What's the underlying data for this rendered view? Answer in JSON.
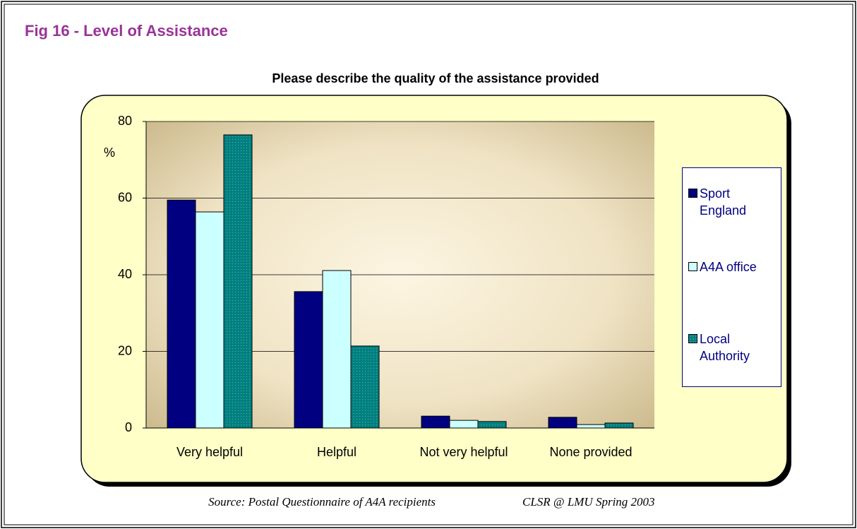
{
  "heading": "Fig 16 - Level of Assistance",
  "chart_data": {
    "type": "bar",
    "title": "Please describe the quality of the assistance provided",
    "ylabel": "%",
    "categories": [
      "Very helpful",
      "Helpful",
      "Not very helpful",
      "None provided"
    ],
    "series": [
      {
        "name": "Sport England",
        "color": "#000080",
        "values": [
          59.5,
          35.6,
          3.1,
          2.8
        ]
      },
      {
        "name": "A4A office",
        "color": "#ccffff",
        "values": [
          56.4,
          41.1,
          2.0,
          0.9
        ]
      },
      {
        "name": "Local Authority",
        "color": "#008080",
        "values": [
          76.5,
          21.4,
          1.7,
          1.3
        ]
      }
    ],
    "ylim": [
      0,
      80
    ],
    "yticks": [
      0,
      20,
      40,
      60,
      80
    ],
    "grid": true
  },
  "source": "Source: Postal Questionnaire of A4A recipients",
  "credit": "CLSR @ LMU Spring 2003"
}
